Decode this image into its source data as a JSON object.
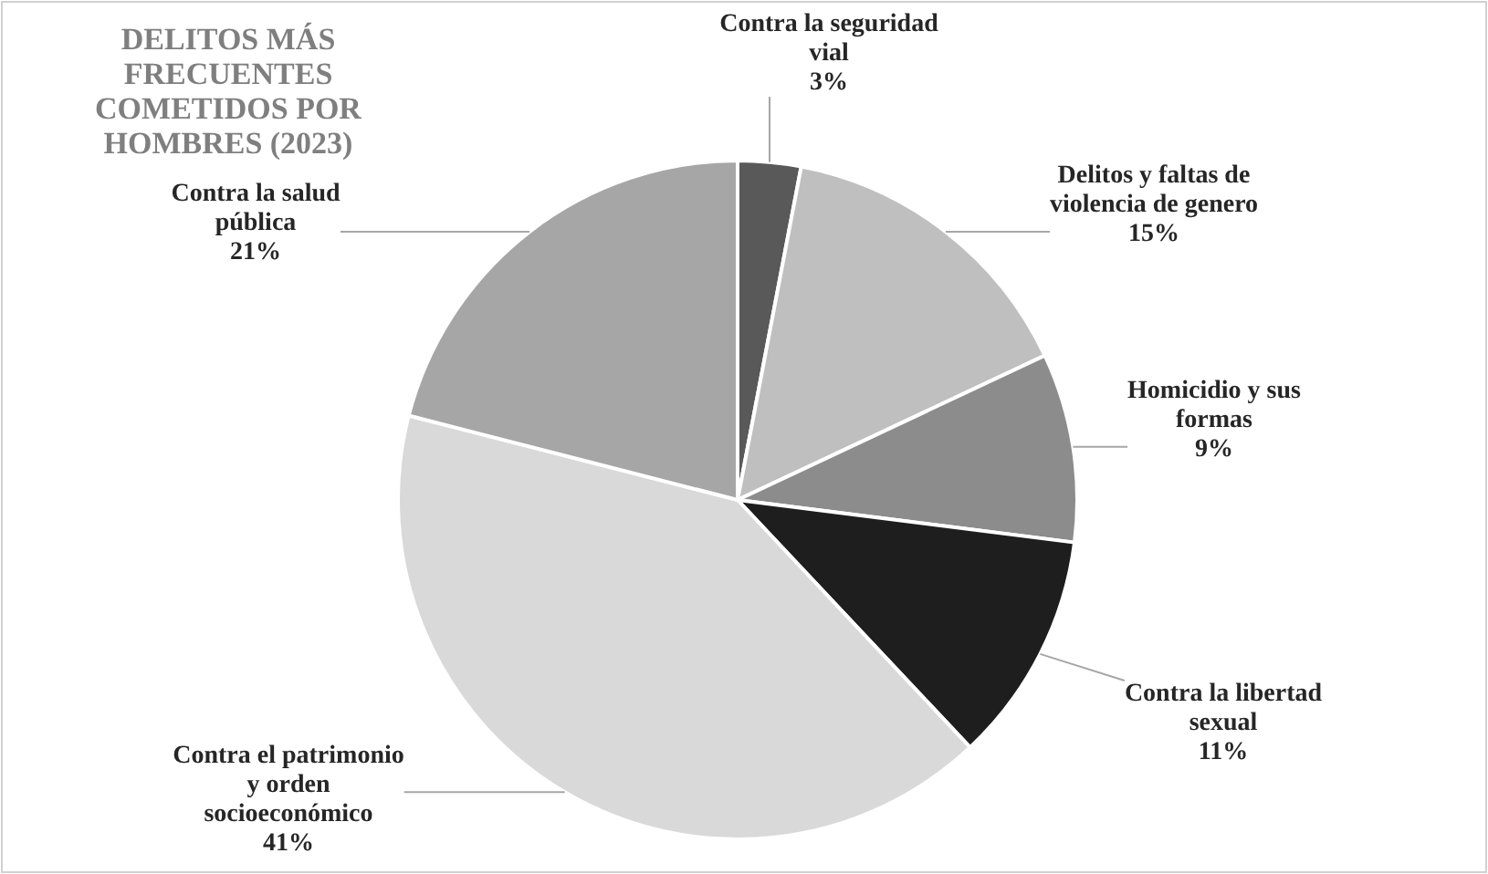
{
  "chart_data": {
    "type": "pie",
    "title": "DELITOS MÁS FRECUENTES COMETIDOS POR HOMBRES (2023)",
    "categories": [
      "Contra la seguridad vial",
      "Delitos y faltas de violencia de genero",
      "Homicidio y sus formas",
      "Contra la libertad sexual",
      "Contra el patrimonio y orden socioeconómico",
      "Contra la salud pública"
    ],
    "values": [
      3,
      15,
      9,
      11,
      41,
      21
    ],
    "colors": [
      "#595959",
      "#bfbfbf",
      "#8c8c8c",
      "#1e1e1e",
      "#d9d9d9",
      "#a6a6a6"
    ],
    "value_labels": [
      "3%",
      "15%",
      "9%",
      "11%",
      "41%",
      "21%"
    ]
  }
}
